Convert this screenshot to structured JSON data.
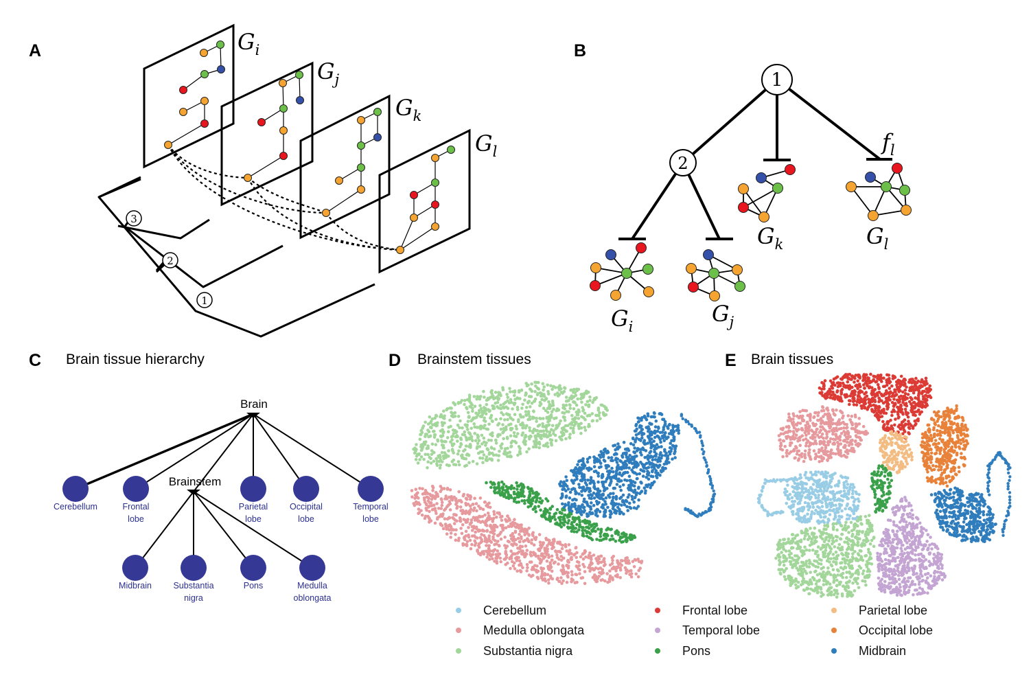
{
  "panels": {
    "a": {
      "letter": "A",
      "graphs": [
        "G_i",
        "G_j",
        "G_k",
        "G_l"
      ],
      "numbers": [
        "3",
        "2",
        "1"
      ]
    },
    "b": {
      "letter": "B",
      "numbers": [
        "1",
        "2"
      ],
      "graphs": [
        "G_i",
        "G_j",
        "G_k",
        "G_l"
      ],
      "f": "f_l"
    },
    "c": {
      "letter": "C",
      "title": "Brain tissue hierarchy",
      "root": "Brain",
      "mid": "Brainstem",
      "top_leaves": [
        {
          "lines": [
            "Cerebellum"
          ]
        },
        {
          "lines": [
            "Frontal",
            "lobe"
          ]
        },
        {
          "lines": [
            "Parietal",
            "lobe"
          ]
        },
        {
          "lines": [
            "Occipital",
            "lobe"
          ]
        },
        {
          "lines": [
            "Temporal",
            "lobe"
          ]
        }
      ],
      "bottom_leaves": [
        {
          "lines": [
            "Midbrain"
          ]
        },
        {
          "lines": [
            "Substantia",
            "nigra"
          ]
        },
        {
          "lines": [
            "Pons"
          ]
        },
        {
          "lines": [
            "Medulla",
            "oblongata"
          ]
        }
      ]
    },
    "d": {
      "letter": "D",
      "title": "Brainstem tissues"
    },
    "e": {
      "letter": "E",
      "title": "Brain tissues"
    }
  },
  "legend": [
    {
      "label": "Cerebellum",
      "color": "#98cde5"
    },
    {
      "label": "Medulla oblongata",
      "color": "#e69a9d"
    },
    {
      "label": "Substantia nigra",
      "color": "#a3d69a"
    },
    {
      "label": "Frontal lobe",
      "color": "#dc3b35"
    },
    {
      "label": "Temporal lobe",
      "color": "#c3a4d2"
    },
    {
      "label": "Pons",
      "color": "#3aa14a"
    },
    {
      "label": "Parietal lobe",
      "color": "#f2bc82"
    },
    {
      "label": "Occipital lobe",
      "color": "#e8823a"
    },
    {
      "label": "Midbrain",
      "color": "#2f7dbd"
    }
  ],
  "node_colors": {
    "orange": "#f5a431",
    "green": "#6cc04a",
    "red": "#e8161f",
    "blue": "#3550a8",
    "tree_node": "#353895"
  }
}
